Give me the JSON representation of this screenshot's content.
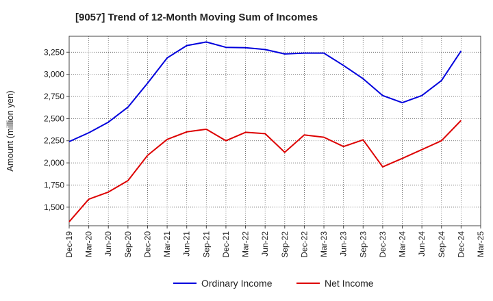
{
  "chart_data": {
    "type": "line",
    "title": "[9057]  Trend of 12-Month Moving Sum of Incomes",
    "xlabel": "",
    "ylabel": "Amount (million yen)",
    "ylim": [
      1290,
      3430
    ],
    "yticks": [
      1500,
      1750,
      2000,
      2250,
      2500,
      2750,
      3000,
      3250
    ],
    "ytick_labels": [
      "1,500",
      "1,750",
      "2,000",
      "2,250",
      "2,500",
      "2,750",
      "3,000",
      "3,250"
    ],
    "categories": [
      "Dec-19",
      "Mar-20",
      "Jun-20",
      "Sep-20",
      "Dec-20",
      "Mar-21",
      "Jun-21",
      "Sep-21",
      "Dec-21",
      "Mar-22",
      "Jun-22",
      "Sep-22",
      "Dec-22",
      "Mar-23",
      "Jun-23",
      "Sep-23",
      "Dec-23",
      "Mar-24",
      "Jun-24",
      "Sep-24",
      "Dec-24",
      "Mar-25"
    ],
    "series": [
      {
        "name": "Ordinary Income",
        "color": "#0000dd",
        "values": [
          2240,
          2340,
          2460,
          2630,
          2900,
          3185,
          3325,
          3365,
          3305,
          3300,
          3280,
          3230,
          3240,
          3240,
          3100,
          2950,
          2760,
          2680,
          2760,
          2930,
          3265,
          null
        ]
      },
      {
        "name": "Net Income",
        "color": "#dd0000",
        "values": [
          1335,
          1590,
          1670,
          1800,
          2085,
          2265,
          2350,
          2380,
          2250,
          2345,
          2330,
          2120,
          2315,
          2290,
          2185,
          2260,
          1955,
          2050,
          2150,
          2250,
          2480,
          null
        ]
      }
    ],
    "legend_position": "bottom-center",
    "grid": true
  }
}
